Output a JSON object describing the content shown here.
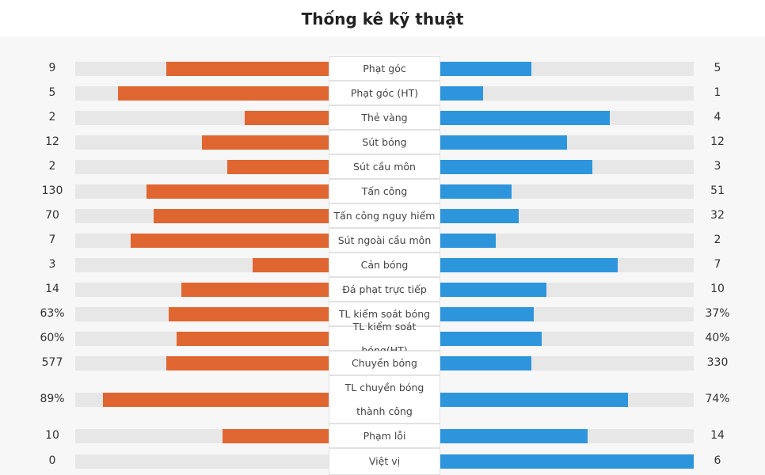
{
  "title": "Thống kê kỹ thuật",
  "colors": {
    "home": "#e06631",
    "away": "#2d95dc",
    "track": "#e7e7e7"
  },
  "stats": [
    {
      "label": "Phạt góc",
      "left": "9",
      "right": "5",
      "left_frac": 0.64,
      "right_frac": 0.36
    },
    {
      "label": "Phạt góc (HT)",
      "left": "5",
      "right": "1",
      "left_frac": 0.83,
      "right_frac": 0.17
    },
    {
      "label": "Thẻ vàng",
      "left": "2",
      "right": "4",
      "left_frac": 0.33,
      "right_frac": 0.67
    },
    {
      "label": "Sút bóng",
      "left": "12",
      "right": "12",
      "left_frac": 0.5,
      "right_frac": 0.5
    },
    {
      "label": "Sút cầu môn",
      "left": "2",
      "right": "3",
      "left_frac": 0.4,
      "right_frac": 0.6
    },
    {
      "label": "Tấn công",
      "left": "130",
      "right": "51",
      "left_frac": 0.72,
      "right_frac": 0.28
    },
    {
      "label": "Tấn công nguy hiểm",
      "left": "70",
      "right": "32",
      "left_frac": 0.69,
      "right_frac": 0.31
    },
    {
      "label": "Sút ngoài cầu môn",
      "left": "7",
      "right": "2",
      "left_frac": 0.78,
      "right_frac": 0.22
    },
    {
      "label": "Cản bóng",
      "left": "3",
      "right": "7",
      "left_frac": 0.3,
      "right_frac": 0.7
    },
    {
      "label": "Đá phạt trực tiếp",
      "left": "14",
      "right": "10",
      "left_frac": 0.58,
      "right_frac": 0.42
    },
    {
      "label": "TL kiểm soát bóng",
      "left": "63%",
      "right": "37%",
      "left_frac": 0.63,
      "right_frac": 0.37
    },
    {
      "label": "TL kiểm soát bóng(HT)",
      "left": "60%",
      "right": "40%",
      "left_frac": 0.6,
      "right_frac": 0.4
    },
    {
      "label": "Chuyền bóng",
      "left": "577",
      "right": "330",
      "left_frac": 0.64,
      "right_frac": 0.36
    },
    {
      "label": "TL chuyền bóng thành công",
      "left": "89%",
      "right": "74%",
      "left_frac": 0.89,
      "right_frac": 0.74
    },
    {
      "label": "Phạm lỗi",
      "left": "10",
      "right": "14",
      "left_frac": 0.42,
      "right_frac": 0.58
    },
    {
      "label": "Việt vị",
      "left": "0",
      "right": "6",
      "left_frac": 0.0,
      "right_frac": 1.0
    }
  ]
}
